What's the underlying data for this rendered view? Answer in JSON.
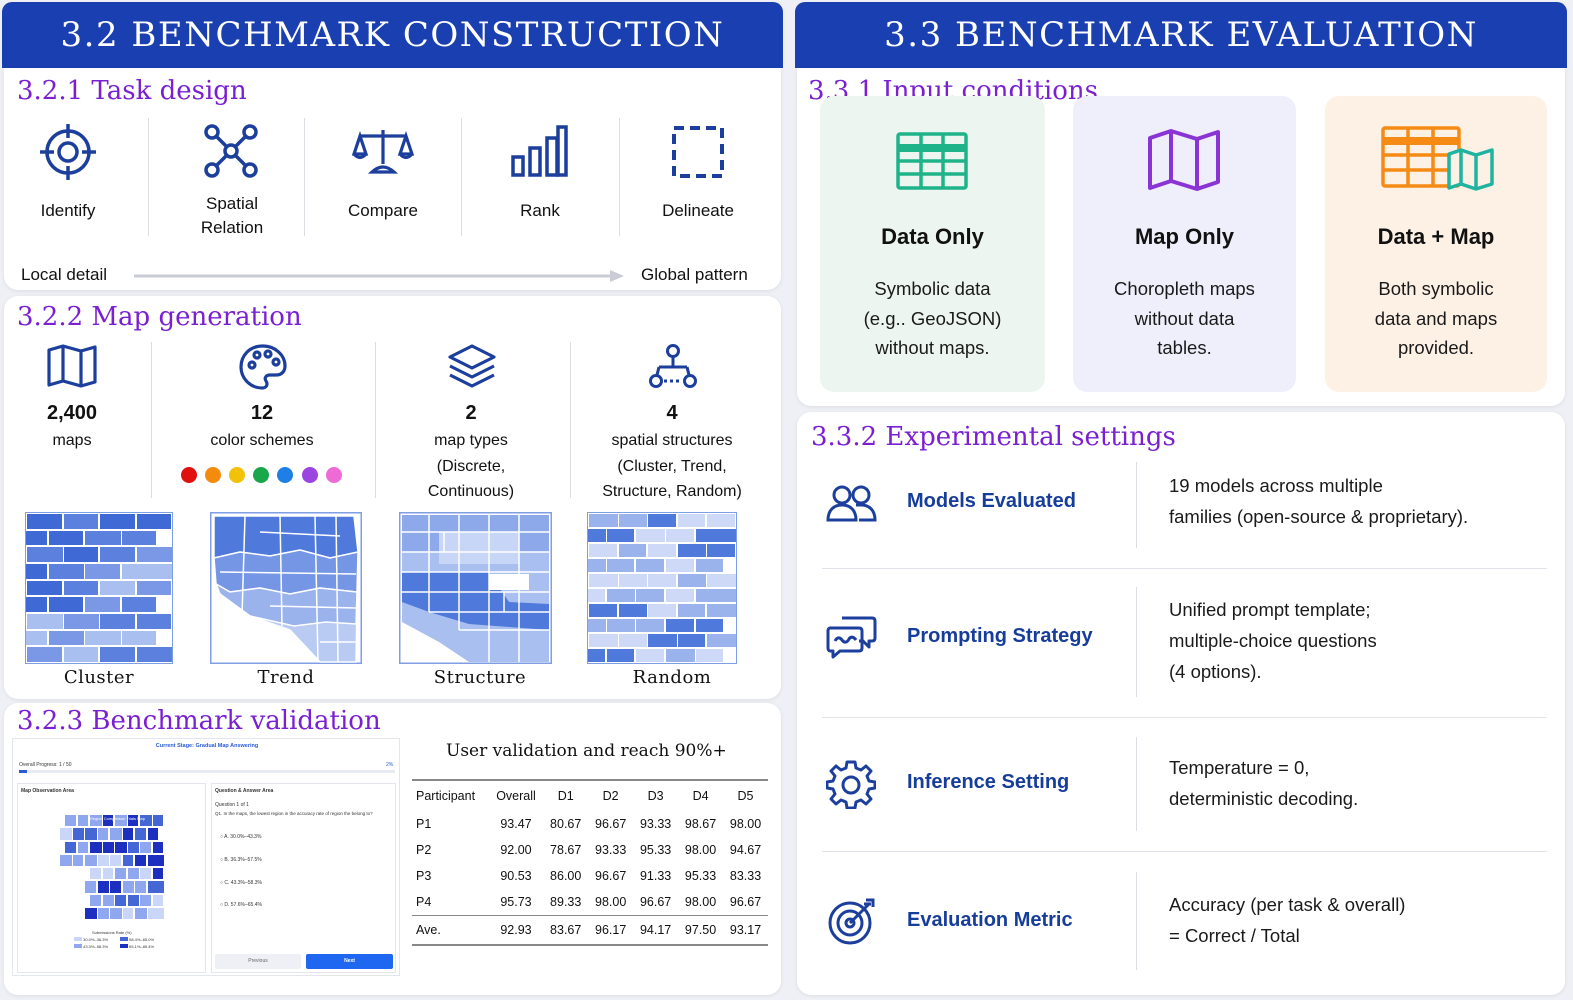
{
  "left_banner": "3.2 BENCHMARK  CONSTRUCTION",
  "right_banner": "3.3 BENCHMARK EVALUATION",
  "task_design": {
    "title": "3.2.1 Task design",
    "items": [
      {
        "label": "Identify",
        "icon": "crosshair-icon"
      },
      {
        "label": "Spatial Relation",
        "icon": "network-icon"
      },
      {
        "label": "Compare",
        "icon": "balance-scale-icon"
      },
      {
        "label": "Rank",
        "icon": "bar-chart-icon"
      },
      {
        "label": "Delineate",
        "icon": "dashed-square-icon"
      }
    ],
    "axis_left": "Local detail",
    "axis_right": "Global pattern"
  },
  "map_generation": {
    "title": "3.2.2 Map generation",
    "stats": [
      {
        "value": "2,400",
        "label": "maps",
        "icon": "map-icon"
      },
      {
        "value": "12",
        "label": "color schemes",
        "icon": "palette-icon"
      },
      {
        "value": "2",
        "label": "map types (Discrete, Continuous)",
        "line1": "map types",
        "line2": "(Discrete,",
        "line3": "Continuous)",
        "icon": "layers-icon"
      },
      {
        "value": "4",
        "label": "spatial structures (Cluster, Trend, Structure, Random)",
        "line1": "spatial structures",
        "line2": "(Cluster, Trend,",
        "line3": "Structure, Random)",
        "icon": "hierarchy-icon"
      }
    ],
    "swatches": [
      "#e0100f",
      "#f48b0c",
      "#f2c20a",
      "#1aa64a",
      "#1f7fe6",
      "#9a45e0",
      "#ee6bd6"
    ],
    "examples": [
      "Cluster",
      "Trend",
      "Structure",
      "Random"
    ]
  },
  "validation": {
    "title": "3.2.3 Benchmark validation",
    "caption": "User validation and reach 90%+",
    "headers": [
      "Participant",
      "Overall",
      "D1",
      "D2",
      "D3",
      "D4",
      "D5"
    ],
    "rows": [
      [
        "P1",
        "93.47",
        "80.67",
        "96.67",
        "93.33",
        "98.67",
        "98.00"
      ],
      [
        "P2",
        "92.00",
        "78.67",
        "93.33",
        "95.33",
        "98.00",
        "94.67"
      ],
      [
        "P3",
        "90.53",
        "86.00",
        "96.67",
        "91.33",
        "95.33",
        "83.33"
      ],
      [
        "P4",
        "95.73",
        "89.33",
        "98.00",
        "96.67",
        "98.00",
        "96.67"
      ]
    ],
    "avg": [
      "Ave.",
      "92.93",
      "83.67",
      "96.17",
      "94.17",
      "97.50",
      "93.17"
    ],
    "mock": {
      "stage": "Current Stage: Gradual Map Answering",
      "progress": "Overall Progress: 1 / 50",
      "progress_pct": "2%",
      "map_area": "Map Observation Area",
      "qa_area": "Question & Answer Area",
      "map_title": "Region Comparison Trials Map",
      "question_no": "Question 1 of 1",
      "question": "Q1. In the maps, the lowest region in the accuracy rate of region the belong to?",
      "options": [
        "A. 30.0%–43.3%",
        "B. 36.3%–57.5%",
        "C. 43.3%–58.3%",
        "D. 57.6%–65.4%"
      ],
      "legend_title": "Submissions Rate (%)",
      "legend": [
        "30.0%–36.3%",
        "58.4%–65.0%",
        "43.3%–58.3%",
        "65.1%–85.4%"
      ],
      "prev": "Previous",
      "next": "Next"
    }
  },
  "input_conditions": {
    "title": "3.3.1 Input conditions",
    "items": [
      {
        "name": "Data Only",
        "desc": [
          "Symbolic data",
          "(e.g.. GeoJSON)",
          "without maps."
        ],
        "bg": "#edf5f0",
        "icon": "table-icon",
        "color": "#1fb389"
      },
      {
        "name": "Map Only",
        "desc": [
          "Choropleth maps",
          "without data",
          "tables."
        ],
        "bg": "#efeefb",
        "icon": "map-icon",
        "color": "#8a34d6"
      },
      {
        "name": "Data + Map",
        "desc": [
          "Both symbolic",
          "data and maps",
          "provided."
        ],
        "bg": "#fdf1e6",
        "icon": "table-map-icon",
        "color": "#f58a15"
      }
    ]
  },
  "experimental": {
    "title": "3.3.2 Experimental settings",
    "rows": [
      {
        "name": "Models Evaluated",
        "desc": [
          "19 models across multiple",
          "families (open-source & proprietary)."
        ],
        "icon": "users-icon"
      },
      {
        "name": "Prompting Strategy",
        "desc": [
          "Unified prompt template;",
          "multiple-choice questions",
          "(4 options)."
        ],
        "icon": "chat-icon"
      },
      {
        "name": "Inference Setting",
        "desc": [
          "Temperature = 0,",
          "deterministic decoding."
        ],
        "icon": "gear-icon"
      },
      {
        "name": "Evaluation Metric",
        "desc": [
          "Accuracy (per task & overall)",
          "= Correct / Total"
        ],
        "icon": "target-icon"
      }
    ]
  }
}
